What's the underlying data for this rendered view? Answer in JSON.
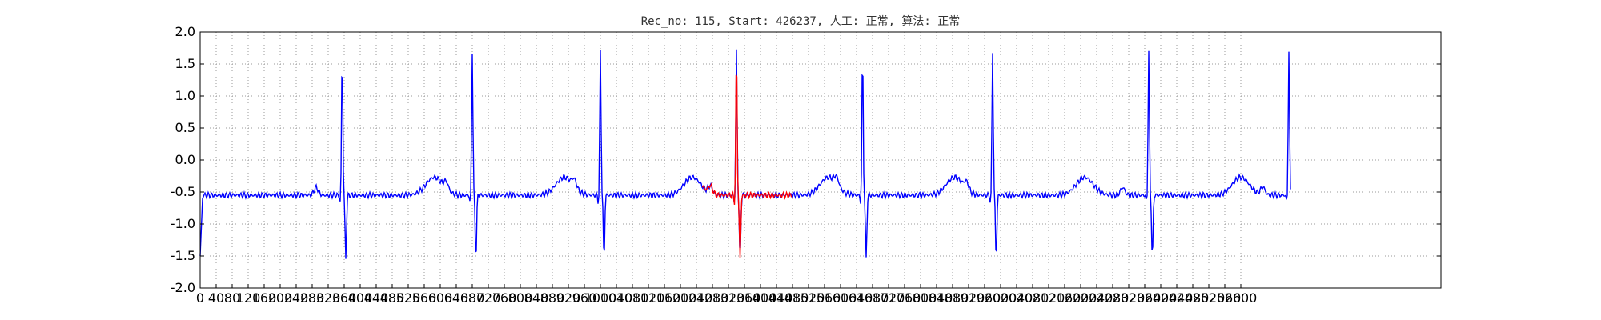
{
  "chart_data": {
    "type": "line",
    "title": "Rec_no: 115, Start: 426237, 人工: 正常, 算法: 正常",
    "xlabel": "",
    "ylabel": "",
    "xlim": [
      0,
      3100
    ],
    "ylim": [
      -2.0,
      2.0
    ],
    "grid": true,
    "grid_style": "dotted",
    "y_ticks": [
      "2.0",
      "1.5",
      "1.0",
      "0.5",
      "0.0",
      "-0.5",
      "-1.0",
      "-1.5",
      "-2.0"
    ],
    "x_ticks": [
      "0",
      "40",
      "80",
      "120",
      "160",
      "200",
      "240",
      "280",
      "320",
      "360",
      "400",
      "440",
      "480",
      "520",
      "560",
      "600",
      "640",
      "680",
      "720",
      "760",
      "800",
      "840",
      "880",
      "920",
      "960",
      "1000",
      "1040",
      "1080",
      "1120",
      "1160",
      "1200",
      "1240",
      "1280",
      "1320",
      "1360",
      "1400",
      "1440",
      "1480",
      "1520",
      "1560",
      "1600",
      "1640",
      "1680",
      "1720",
      "1760",
      "1800",
      "1840",
      "1880",
      "1920",
      "1960",
      "2000",
      "2040",
      "2080",
      "2120",
      "2160",
      "2200",
      "2240",
      "2280",
      "2320",
      "2360",
      "2400",
      "2440",
      "2480",
      "2520",
      "2560",
      "2600"
    ],
    "series": [
      {
        "color": "#0000ff",
        "beats": [
          {
            "x": 355,
            "type": "first"
          },
          {
            "x": 680,
            "type": "normal"
          },
          {
            "x": 1000,
            "type": "normal"
          },
          {
            "x": 1655,
            "type": "normal"
          },
          {
            "x": 1980,
            "type": "normal"
          },
          {
            "x": 2370,
            "type": "normal"
          },
          {
            "x": 2720,
            "type": "last"
          }
        ],
        "x_range": [
          0,
          2725
        ]
      },
      {
        "color": "#ff0000",
        "beats": [
          {
            "x": 1340,
            "type": "normal"
          }
        ],
        "x_range": [
          1255,
          1480
        ]
      }
    ]
  }
}
